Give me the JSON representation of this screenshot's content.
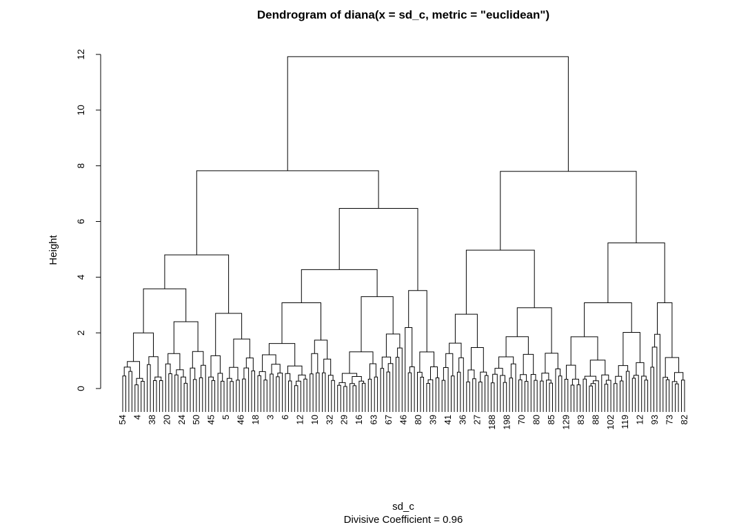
{
  "chart_data": {
    "type": "dendrogram",
    "title": "Dendrogram of  diana(x = sd_c, metric = \"euclidean\")",
    "xlabel": "sd_c",
    "sublabel": "Divisive Coefficient =  0.96",
    "ylabel": "Height",
    "ylim": [
      0,
      12
    ],
    "yticks": [
      0,
      2,
      4,
      6,
      8,
      10,
      12
    ],
    "leaf_count": 200,
    "merges": [
      {
        "node": "root",
        "height": 11.92,
        "children": [
          "A",
          "B"
        ]
      },
      {
        "node": "A",
        "height": 7.82,
        "children": [
          "A1",
          "A2"
        ]
      },
      {
        "node": "A1",
        "height": 4.8,
        "children": [
          "A1a",
          "A1b"
        ]
      },
      {
        "node": "A1a",
        "height": 3.58,
        "children": [
          "A1a1",
          "A1a2"
        ]
      },
      {
        "node": "A1a1",
        "height": 2.0
      },
      {
        "node": "A1a2",
        "height": 2.4
      },
      {
        "node": "A1b",
        "height": 2.7
      },
      {
        "node": "A2",
        "height": 6.47,
        "children": [
          "A2a",
          "A2b"
        ]
      },
      {
        "node": "A2a",
        "height": 4.27,
        "children": [
          "A2a1",
          "A2a2"
        ]
      },
      {
        "node": "A2a1",
        "height": 3.08
      },
      {
        "node": "A2a2",
        "height": 3.3
      },
      {
        "node": "A2b",
        "height": 3.52
      },
      {
        "node": "B",
        "height": 7.8,
        "children": [
          "B1",
          "B2"
        ]
      },
      {
        "node": "B1",
        "height": 4.97,
        "children": [
          "B1a",
          "B1b"
        ]
      },
      {
        "node": "B1a",
        "height": 2.67
      },
      {
        "node": "B1b",
        "height": 2.9
      },
      {
        "node": "B2",
        "height": 5.23,
        "children": [
          "B2a",
          "B2b"
        ]
      },
      {
        "node": "B2a",
        "height": 3.08
      },
      {
        "node": "B2b",
        "height": 3.08
      }
    ],
    "leaf_labels_visible": [
      "54",
      "4",
      "38",
      "20",
      "24",
      "50",
      "45",
      "5",
      "46",
      "18",
      "3",
      "6",
      "12",
      "10",
      "32",
      "29",
      "16",
      "63",
      "67",
      "46",
      "80",
      "39",
      "41",
      "36",
      "27",
      "188",
      "198",
      "70",
      "80",
      "85",
      "129",
      "83",
      "88",
      "102",
      "119",
      "12",
      "93",
      "73",
      "82"
    ],
    "grid": false,
    "legend": "none"
  }
}
